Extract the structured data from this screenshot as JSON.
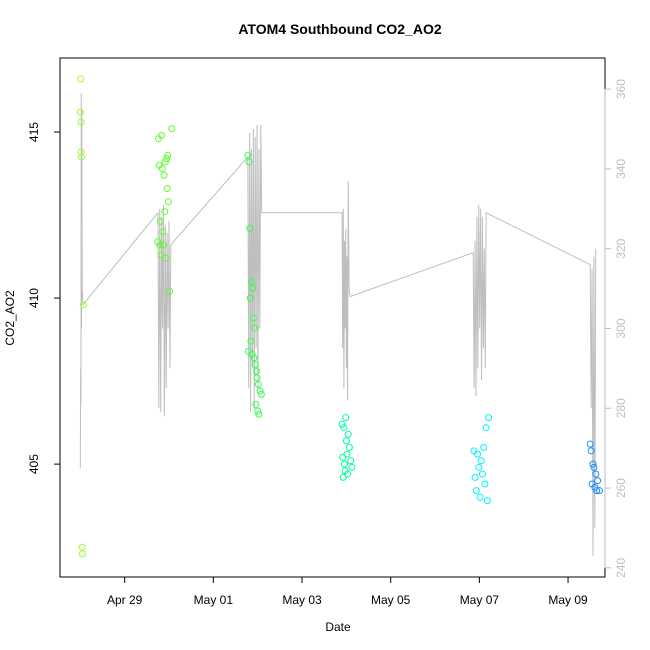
{
  "chart_data": {
    "type": "scatter",
    "title": "ATOM4 Southbound CO2_AO2",
    "x_label": "Date",
    "y_label": "CO2_AO2",
    "xlim": [
      "04-27 13:00",
      "05-09 20:00"
    ],
    "xticks": [
      {
        "value": "04-29 00:00",
        "label": "Apr 29"
      },
      {
        "value": "05-01 00:00",
        "label": "May 01"
      },
      {
        "value": "05-03 00:00",
        "label": "May 03"
      },
      {
        "value": "05-05 00:00",
        "label": "May 05"
      },
      {
        "value": "05-07 00:00",
        "label": "May 07"
      },
      {
        "value": "05-09 00:00",
        "label": "May 09"
      }
    ],
    "ylim": [
      401.6,
      417.23
    ],
    "yticks": [
      405,
      410,
      415
    ],
    "y2lim": [
      237.7,
      367.8
    ],
    "y2ticks": [
      240,
      260,
      280,
      300,
      320,
      340,
      360
    ],
    "series": [
      {
        "type": "line",
        "axis": "y2",
        "color": "#bebebe",
        "x": [
          "04-28 00:00",
          "04-28 00:10",
          "04-28 00:20",
          "04-28 00:30",
          "04-28 00:40",
          "04-28 00:50",
          "04-28 01:00",
          "04-28 01:30",
          "04-29 18:00",
          "04-29 18:30",
          "04-29 19:00",
          "04-29 19:30",
          "04-29 20:00",
          "04-29 20:30",
          "04-29 21:00",
          "04-29 21:30",
          "04-29 22:00",
          "04-29 22:30",
          "04-29 23:00",
          "04-29 23:30",
          "04-30 00:00",
          "04-30 00:30",
          "04-30 01:00",
          "05-01 18:40",
          "05-01 19:10",
          "05-01 19:40",
          "05-01 20:10",
          "05-01 20:40",
          "05-01 21:10",
          "05-01 21:40",
          "05-01 22:10",
          "05-01 22:40",
          "05-01 23:10",
          "05-01 23:40",
          "05-02 00:10",
          "05-02 00:40",
          "05-02 01:10",
          "05-02 01:40",
          "05-02 02:10",
          "05-03 21:40",
          "05-03 22:00",
          "05-03 22:20",
          "05-03 22:40",
          "05-03 23:00",
          "05-03 23:20",
          "05-03 23:40",
          "05-04 00:00",
          "05-04 00:20",
          "05-04 00:40",
          "05-04 01:00",
          "05-04 01:30",
          "05-04 02:00",
          "05-06 20:40",
          "05-06 21:10",
          "05-06 21:40",
          "05-06 22:10",
          "05-06 22:40",
          "05-06 23:10",
          "05-06 23:40",
          "05-07 00:10",
          "05-07 00:40",
          "05-07 01:10",
          "05-07 01:40",
          "05-07 02:10",
          "05-07 02:40",
          "05-07 03:10",
          "05-07 03:40",
          "05-09 12:00",
          "05-09 12:30",
          "05-09 13:00",
          "05-09 13:30",
          "05-09 14:00",
          "05-09 14:30",
          "05-09 15:00"
        ],
        "values": [
          265,
          290,
          281,
          359,
          300,
          355,
          310,
          306,
          329,
          280,
          330,
          279,
          328,
          300,
          331,
          278,
          326,
          285,
          324,
          300,
          327,
          290,
          321,
          343,
          285,
          349,
          279,
          345,
          290,
          350,
          280,
          348,
          295,
          351,
          285,
          345,
          300,
          351,
          329,
          329,
          295,
          330,
          285,
          322,
          300,
          325,
          290,
          318,
          282,
          337,
          310,
          308,
          319,
          285,
          322,
          283,
          328,
          290,
          331,
          300,
          330,
          287,
          328,
          295,
          320,
          290,
          329,
          316,
          280,
          315,
          243,
          318,
          250,
          320
        ]
      },
      {
        "color": "#99ff33",
        "x": [
          "04-28 00:00",
          "04-28 00:10",
          "04-28 00:20",
          "04-28 00:30",
          "04-28 00:40",
          "04-28 01:00",
          "04-28 01:10",
          "04-28 01:40"
        ],
        "values": [
          415.6,
          416.6,
          414.4,
          415.3,
          414.25,
          402.5,
          402.3,
          409.8
        ]
      },
      {
        "color": "#5cff2e",
        "x": [
          "04-29 18:00",
          "04-29 18:20",
          "04-29 18:40",
          "04-29 19:00",
          "04-29 19:20",
          "04-29 19:40",
          "04-29 20:00",
          "04-29 20:20",
          "04-29 20:40",
          "04-29 21:00",
          "04-29 21:20",
          "04-29 21:40",
          "04-29 22:00",
          "04-29 22:20",
          "04-29 22:40",
          "04-29 23:00",
          "04-29 23:20",
          "04-29 23:40",
          "04-30 00:20",
          "04-30 01:30"
        ],
        "values": [
          411.7,
          414.8,
          414.0,
          411.6,
          412.3,
          411.3,
          414.9,
          413.9,
          412.0,
          411.6,
          413.7,
          412.6,
          414.1,
          411.2,
          414.2,
          413.3,
          414.3,
          412.9,
          410.2,
          415.1
        ]
      },
      {
        "color": "#33ff4d",
        "x": [
          "05-01 18:40",
          "05-01 19:00",
          "05-01 19:20",
          "05-01 19:40",
          "05-01 20:00",
          "05-01 20:20",
          "05-01 20:40",
          "05-01 21:00",
          "05-01 21:20",
          "05-01 21:40",
          "05-01 22:00",
          "05-01 22:20",
          "05-01 22:40",
          "05-01 23:00",
          "05-01 23:20",
          "05-01 23:40",
          "05-02 00:00",
          "05-02 00:20",
          "05-02 00:40",
          "05-02 01:20",
          "05-02 02:00"
        ],
        "values": [
          414.3,
          408.4,
          414.1,
          412.1,
          410.0,
          408.7,
          410.5,
          408.3,
          410.3,
          409.4,
          408.2,
          409.1,
          408.0,
          406.8,
          407.8,
          407.6,
          406.6,
          407.4,
          406.5,
          407.2,
          407.1
        ]
      },
      {
        "color": "#00ffa0",
        "x": [
          "05-03 21:40",
          "05-03 22:00",
          "05-03 22:20",
          "05-03 22:40",
          "05-03 23:00",
          "05-03 23:20",
          "05-03 23:40",
          "05-04 00:00",
          "05-04 00:20",
          "05-04 00:40",
          "05-04 01:00",
          "05-04 01:40",
          "05-04 02:20",
          "05-04 03:00"
        ],
        "values": [
          406.2,
          405.2,
          404.6,
          406.1,
          405.0,
          404.8,
          406.4,
          405.7,
          405.3,
          404.7,
          405.9,
          405.5,
          405.1,
          404.9
        ]
      },
      {
        "color": "#00f5ff",
        "x": [
          "05-06 21:00",
          "05-06 21:40",
          "05-06 22:20",
          "05-06 23:00",
          "05-06 23:40",
          "05-07 00:20",
          "05-07 01:00",
          "05-07 01:40",
          "05-07 02:20",
          "05-07 03:00",
          "05-07 03:40",
          "05-07 04:20",
          "05-07 05:00"
        ],
        "values": [
          405.4,
          404.6,
          404.2,
          405.3,
          404.9,
          404.0,
          405.1,
          404.7,
          405.5,
          404.4,
          406.1,
          403.9,
          406.4
        ]
      },
      {
        "color": "#1a8cff",
        "x": [
          "05-09 12:00",
          "05-09 12:30",
          "05-09 13:00",
          "05-09 13:30",
          "05-09 14:00",
          "05-09 14:30",
          "05-09 15:00",
          "05-09 15:30",
          "05-09 16:00",
          "05-09 17:00"
        ],
        "values": [
          405.6,
          405.4,
          404.4,
          405.0,
          404.9,
          404.3,
          404.7,
          404.2,
          404.5,
          404.2
        ]
      }
    ]
  }
}
